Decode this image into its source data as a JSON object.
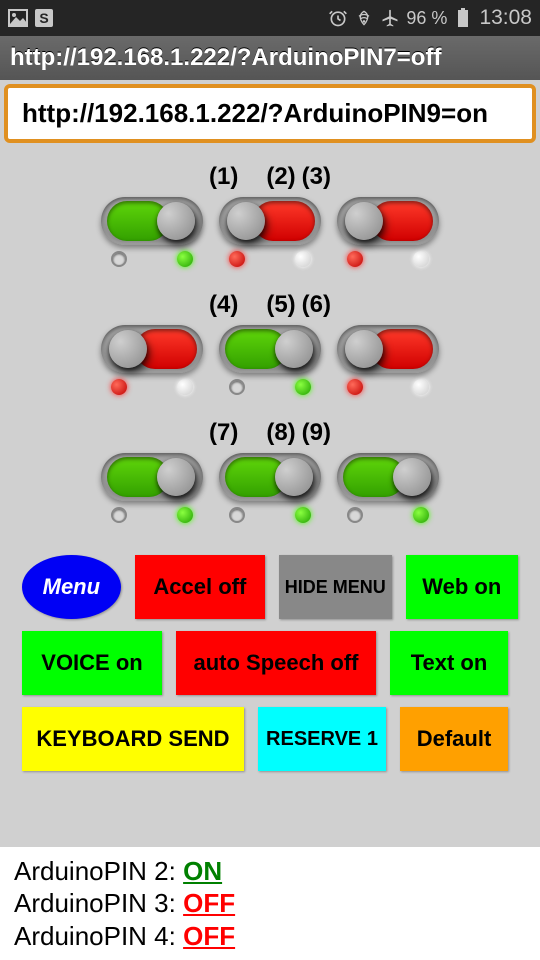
{
  "statusbar": {
    "battery_pct": "96 %",
    "time": "13:08"
  },
  "urlbar": {
    "title": "http://192.168.1.222/?ArduinoPIN7=off",
    "input_value": "http://192.168.1.222/?ArduinoPIN9=on"
  },
  "toggle_groups": [
    {
      "labels": [
        "(1)",
        "(2)",
        "(3)"
      ],
      "toggles": [
        {
          "state": "on",
          "dots": [
            "hollow",
            "green"
          ]
        },
        {
          "state": "off",
          "dots": [
            "red",
            "white"
          ]
        },
        {
          "state": "off",
          "dots": [
            "red",
            "white"
          ]
        }
      ]
    },
    {
      "labels": [
        "(4)",
        "(5)",
        "(6)"
      ],
      "toggles": [
        {
          "state": "off",
          "dots": [
            "red",
            "white"
          ]
        },
        {
          "state": "on",
          "dots": [
            "hollow",
            "green"
          ]
        },
        {
          "state": "off",
          "dots": [
            "red",
            "white"
          ]
        }
      ]
    },
    {
      "labels": [
        "(7)",
        "(8)",
        "(9)"
      ],
      "toggles": [
        {
          "state": "on",
          "dots": [
            "hollow",
            "green"
          ]
        },
        {
          "state": "on",
          "dots": [
            "hollow",
            "green"
          ]
        },
        {
          "state": "on",
          "dots": [
            "hollow",
            "green"
          ]
        }
      ]
    }
  ],
  "buttons": {
    "menu": "Menu",
    "accel": "Accel off",
    "hide_menu": "HIDE MENU",
    "web": "Web on",
    "voice": "VOICE on",
    "auto_speech": "auto Speech off",
    "text": "Text on",
    "keyboard_send": "KEYBOARD SEND",
    "reserve": "RESERVE 1",
    "default": "Default"
  },
  "button_colors": {
    "menu_bg": "#0000f5",
    "menu_fg": "#ffffff",
    "red": "#ff0000",
    "gray": "#888888",
    "green": "#00ff00",
    "yellow": "#ffff00",
    "cyan": "#00ffff",
    "orange": "#ffa000"
  },
  "footer": {
    "lines": [
      {
        "label": "ArduinoPIN 2: ",
        "state": "ON",
        "class": "on"
      },
      {
        "label": "ArduinoPIN 3: ",
        "state": "OFF",
        "class": "off"
      },
      {
        "label": "ArduinoPIN 4: ",
        "state": "OFF",
        "class": "off"
      }
    ]
  }
}
